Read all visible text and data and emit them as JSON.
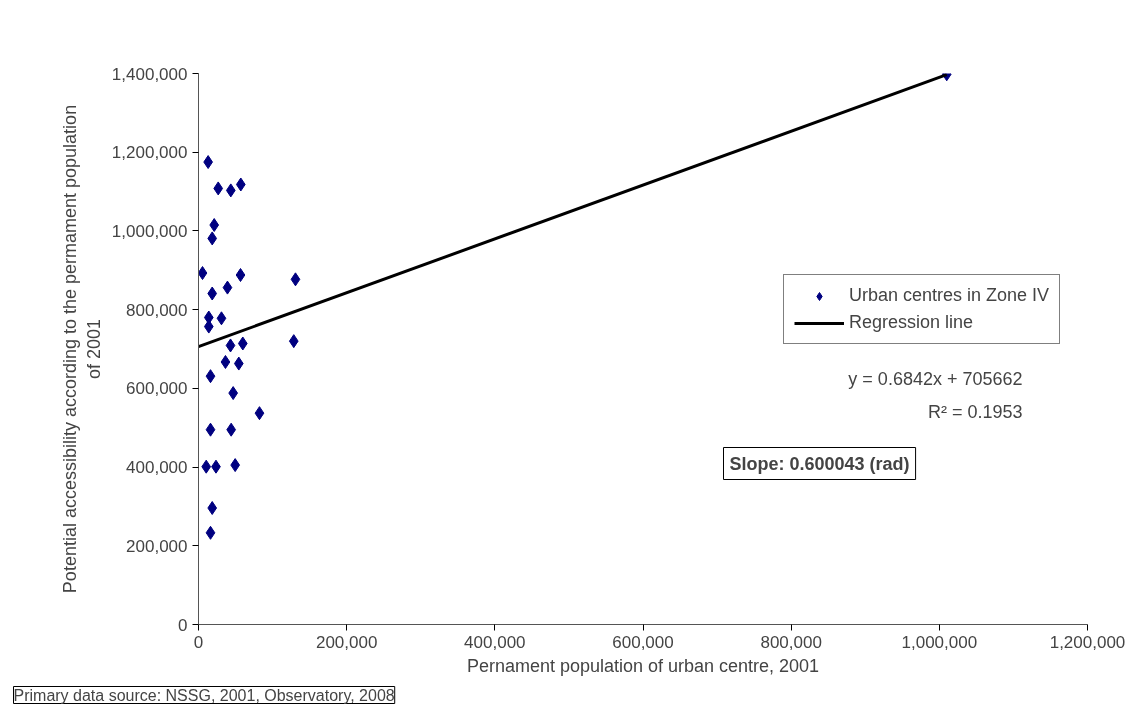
{
  "chart_data": {
    "type": "scatter",
    "xlabel": "Pernament population of urban centre, 2001",
    "ylabel": "Potential accessibility according to the permament population of 2001",
    "xlim": [
      0,
      1200000
    ],
    "xticks": [
      {
        "value": 0,
        "label": "0"
      },
      {
        "value": 200000,
        "label": "200,000"
      },
      {
        "value": 400000,
        "label": "400,000"
      },
      {
        "value": 600000,
        "label": "600,000"
      },
      {
        "value": 800000,
        "label": "800,000"
      },
      {
        "value": 1000000,
        "label": "1,000,000"
      },
      {
        "value": 1200000,
        "label": "1,200,000"
      }
    ],
    "ylim": [
      0,
      1400000
    ],
    "yticks": [
      {
        "value": 0,
        "label": "0"
      },
      {
        "value": 200000,
        "label": "200,000"
      },
      {
        "value": 400000,
        "label": "400,000"
      },
      {
        "value": 600000,
        "label": "600,000"
      },
      {
        "value": 800000,
        "label": "800,000"
      },
      {
        "value": 1000000,
        "label": "1,000,000"
      },
      {
        "value": 1200000,
        "label": "1,200,000"
      },
      {
        "value": 1400000,
        "label": "1,400,000"
      }
    ],
    "grid": false,
    "legend": "right",
    "series": [
      {
        "name": "Urban centres in Zone IV",
        "marker": "diamond",
        "color": "#000080",
        "x": [
          13000,
          26600,
          43600,
          57100,
          21200,
          18500,
          5400,
          56700,
          130900,
          39100,
          18500,
          13900,
          31000,
          13900,
          43200,
          59800,
          128600,
          36400,
          54400,
          16200,
          46800,
          82300,
          16200,
          44100,
          10400,
          23600,
          49500,
          18500,
          16200,
          1010000
        ],
        "values": [
          1175000,
          1108000,
          1103000,
          1118000,
          1015000,
          981000,
          893000,
          888000,
          877000,
          856000,
          841000,
          780000,
          778000,
          757000,
          709000,
          714000,
          720000,
          667000,
          663000,
          631000,
          588000,
          537000,
          495000,
          495000,
          401000,
          401000,
          405000,
          296000,
          233000,
          1398000
        ]
      },
      {
        "name": "Regression line",
        "type": "line",
        "color": "#000000",
        "line_style": "solid",
        "x": [
          0,
          1010000
        ],
        "values": [
          706000,
          1397000
        ]
      }
    ],
    "annotations": [
      "y = 0.6842x + 705662",
      "R² = 0.1953",
      "Slope: 0.600043 (rad)",
      "Primary data source: NSSG, 2001, Observatory, 2008"
    ]
  }
}
